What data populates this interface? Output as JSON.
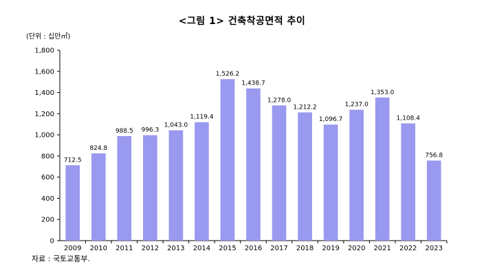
{
  "chart_data": {
    "type": "bar",
    "title": "<그림 1> 건축착공면적 추이",
    "unit_label": "(단위 : 십만㎡)",
    "source": "자료 : 국토교통부.",
    "categories": [
      "2009",
      "2010",
      "2011",
      "2012",
      "2013",
      "2014",
      "2015",
      "2016",
      "2017",
      "2018",
      "2019",
      "2020",
      "2021",
      "2022",
      "2023"
    ],
    "values": [
      712.5,
      824.8,
      988.5,
      996.3,
      1043.0,
      1119.4,
      1526.2,
      1438.7,
      1278.0,
      1212.2,
      1096.7,
      1237.0,
      1353.0,
      1108.4,
      756.8
    ],
    "value_labels": [
      "712.5",
      "824.8",
      "988.5",
      "996.3",
      "1,043.0",
      "1,119.4",
      "1,526.2",
      "1,438.7",
      "1,278.0",
      "1,212.2",
      "1,096.7",
      "1,237.0",
      "1,353.0",
      "1,108.4",
      "756.8"
    ],
    "yticks": [
      "0",
      "200",
      "400",
      "600",
      "800",
      "1,000",
      "1,200",
      "1,400",
      "1,600",
      "1,800"
    ],
    "ylim": [
      0,
      1800
    ],
    "grid": false,
    "legend": "none",
    "bar_color": "#9999f0"
  }
}
